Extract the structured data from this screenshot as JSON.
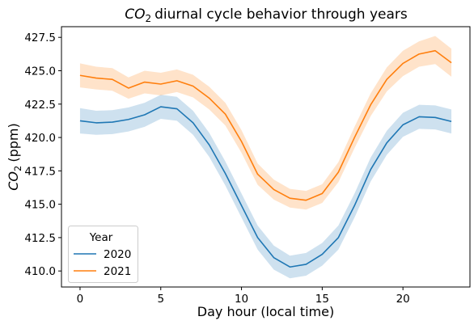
{
  "chart_data": {
    "type": "line",
    "title": "diurnal cycle behavior through years",
    "title_math": {
      "base": "CO",
      "sub": "2"
    },
    "xlabel": "Day hour (local time)",
    "ylabel": "(ppm)",
    "ylabel_math": {
      "base": "CO",
      "sub": "2"
    },
    "xlim": [
      -1.15,
      24.15
    ],
    "ylim": [
      408.8,
      428.3
    ],
    "xticks": [
      0,
      5,
      10,
      15,
      20
    ],
    "yticks": [
      410.0,
      412.5,
      415.0,
      417.5,
      420.0,
      422.5,
      425.0,
      427.5
    ],
    "ytick_labels": [
      "410.0",
      "412.5",
      "415.0",
      "417.5",
      "420.0",
      "422.5",
      "425.0",
      "427.5"
    ],
    "x": [
      0,
      1,
      2,
      3,
      4,
      5,
      6,
      7,
      8,
      9,
      10,
      11,
      12,
      13,
      14,
      15,
      16,
      17,
      18,
      19,
      20,
      21,
      22,
      23
    ],
    "legend": {
      "title": "Year",
      "position": "lower-left"
    },
    "series": [
      {
        "name": "2020",
        "color": "#1f77b4",
        "values": [
          421.25,
          421.1,
          421.15,
          421.35,
          421.7,
          422.3,
          422.15,
          421.1,
          419.45,
          417.3,
          414.9,
          412.5,
          411.0,
          410.3,
          410.5,
          411.25,
          412.5,
          414.9,
          417.6,
          419.6,
          420.95,
          421.55,
          421.5,
          421.2
        ],
        "ci_low": [
          420.3,
          420.2,
          420.25,
          420.45,
          420.8,
          421.4,
          421.25,
          420.2,
          418.55,
          416.4,
          414.0,
          411.6,
          410.1,
          409.45,
          409.65,
          410.4,
          411.6,
          414.0,
          416.7,
          418.7,
          420.05,
          420.65,
          420.6,
          420.3
        ],
        "ci_high": [
          422.2,
          422.0,
          422.05,
          422.25,
          422.6,
          423.2,
          423.05,
          422.0,
          420.35,
          418.2,
          415.8,
          413.4,
          411.9,
          411.15,
          411.35,
          412.1,
          413.4,
          415.8,
          418.5,
          420.5,
          421.85,
          422.45,
          422.4,
          422.1
        ]
      },
      {
        "name": "2021",
        "color": "#ff7f0e",
        "values": [
          424.65,
          424.45,
          424.35,
          423.7,
          424.15,
          424.0,
          424.25,
          423.85,
          422.95,
          421.75,
          419.7,
          417.25,
          416.1,
          415.45,
          415.3,
          415.8,
          417.4,
          420.0,
          422.45,
          424.35,
          425.55,
          426.25,
          426.5,
          425.6
        ],
        "ci_low": [
          423.75,
          423.6,
          423.5,
          422.9,
          423.3,
          423.15,
          423.4,
          423.0,
          422.1,
          420.9,
          418.85,
          416.45,
          415.35,
          414.75,
          414.6,
          415.1,
          416.65,
          419.2,
          421.6,
          423.45,
          424.6,
          425.3,
          425.5,
          424.55
        ],
        "ci_high": [
          425.55,
          425.3,
          425.2,
          424.5,
          425.0,
          424.85,
          425.1,
          424.7,
          423.8,
          422.6,
          420.55,
          418.05,
          416.85,
          416.15,
          416.0,
          416.5,
          418.15,
          420.8,
          423.3,
          425.25,
          426.5,
          427.2,
          427.6,
          426.65
        ]
      }
    ]
  }
}
